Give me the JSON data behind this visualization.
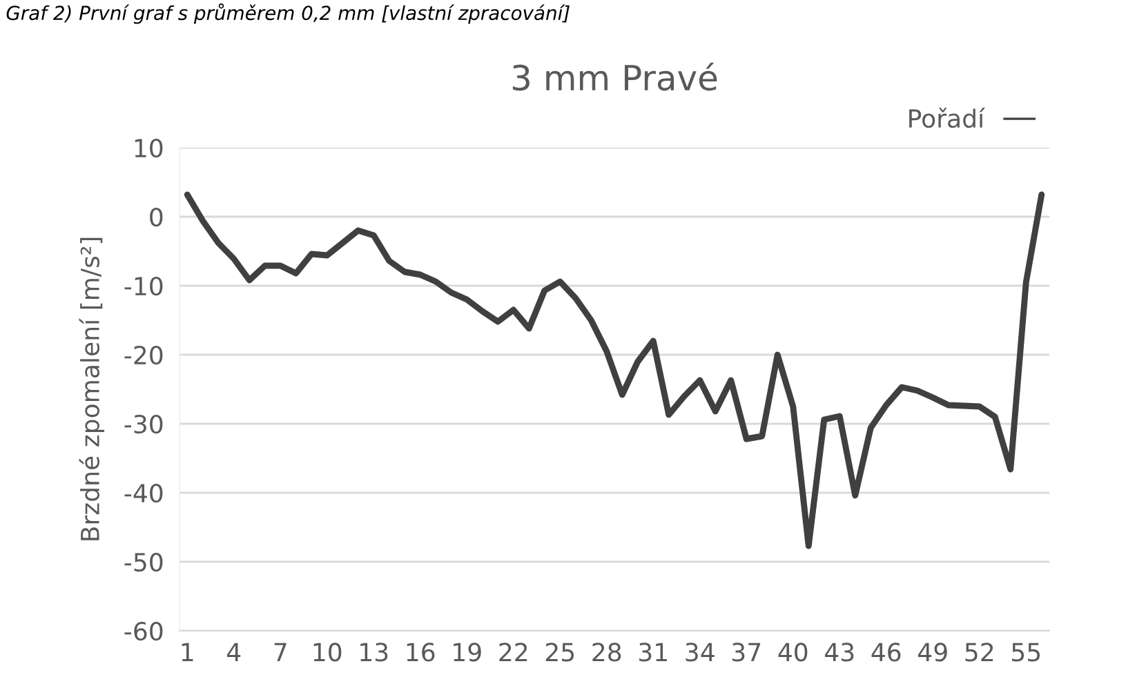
{
  "chart_data": {
    "type": "line",
    "title": "3 mm Pravé",
    "ylabel": "Brzdné zpomalení [m/s²]",
    "annotations": [
      "Graf 2) První graf s průměrem 0,2 mm [vlastní zpracování]"
    ],
    "categories": [
      "1",
      null,
      null,
      "4",
      null,
      null,
      "7",
      null,
      null,
      "10",
      null,
      null,
      "13",
      null,
      null,
      "16",
      null,
      null,
      "19",
      null,
      null,
      "22",
      null,
      null,
      "25",
      null,
      null,
      "28",
      null,
      null,
      "31",
      null,
      null,
      "34",
      null,
      null,
      "37",
      null,
      null,
      "40",
      null,
      null,
      "43",
      null,
      null,
      "46",
      null,
      null,
      "49",
      null,
      null,
      "52",
      null,
      null,
      "55",
      null
    ],
    "series": [
      {
        "name": "Pořadí",
        "color": "#404040",
        "values": [
          3.2,
          -0.6,
          -3.8,
          -6.1,
          -9.2,
          -7.1,
          -7.1,
          -8.2,
          -5.4,
          -5.6,
          -3.8,
          -2.0,
          -2.7,
          -6.4,
          -8.0,
          -8.4,
          -9.4,
          -11.0,
          -12.0,
          -13.7,
          -15.2,
          -13.5,
          -16.2,
          -10.7,
          -9.4,
          -11.8,
          -15.0,
          -19.5,
          -25.8,
          -21.0,
          -18.0,
          -28.7,
          -26.0,
          -23.7,
          -28.2,
          -23.7,
          -32.2,
          -31.8,
          -20.0,
          -27.5,
          -47.7,
          -29.4,
          -28.9,
          -40.4,
          -30.6,
          -27.3,
          -24.7,
          -25.2,
          -26.2,
          -27.3,
          -27.4,
          -27.5,
          -29.0,
          -36.6,
          -9.5,
          3.2
        ]
      }
    ],
    "ylim": [
      -60,
      10
    ],
    "yticks": [
      -60,
      -50,
      -40,
      -30,
      -20,
      -10,
      0,
      10
    ],
    "grid": "y",
    "legend": "top right",
    "marker": "none",
    "line_style": "solid"
  }
}
